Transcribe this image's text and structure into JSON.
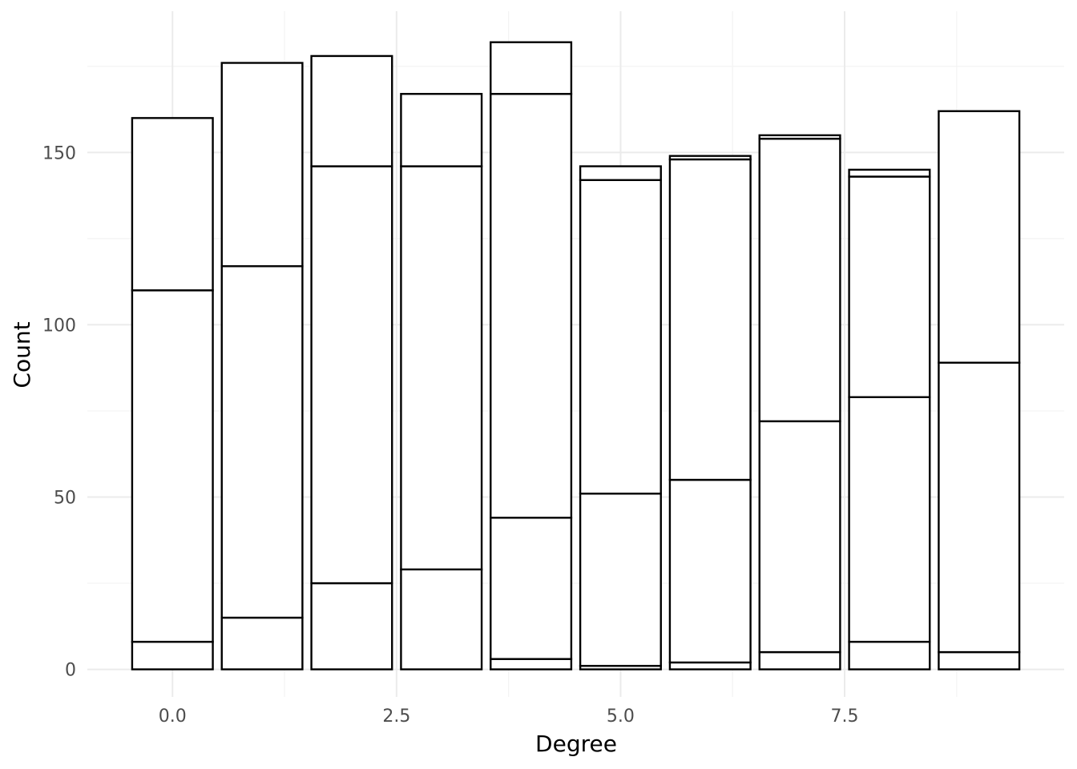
{
  "chart_data": {
    "type": "bar",
    "stacked": true,
    "title": "",
    "xlabel": "Degree",
    "ylabel": "Count",
    "xlim": [
      -0.95,
      9.95
    ],
    "ylim": [
      -8,
      191
    ],
    "x_ticks": [
      0,
      2.5,
      5,
      7.5
    ],
    "x_tick_labels": [
      "0.0",
      "2.5",
      "5.0",
      "7.5"
    ],
    "y_ticks": [
      0,
      50,
      100,
      150
    ],
    "y_tick_labels": [
      "0",
      "50",
      "100",
      "150"
    ],
    "grid": true,
    "legend": "none",
    "bar_width": 0.9,
    "x": [
      0,
      1,
      2,
      3,
      4,
      5,
      6,
      7,
      8,
      9
    ],
    "stack_boundaries": [
      [
        0,
        8,
        110,
        160
      ],
      [
        0,
        15,
        117,
        176
      ],
      [
        0,
        25,
        146,
        178
      ],
      [
        0,
        29,
        146,
        167
      ],
      [
        0,
        3,
        44,
        167,
        182
      ],
      [
        0,
        1,
        51,
        142,
        146
      ],
      [
        0,
        2,
        55,
        148,
        149
      ],
      [
        0,
        5,
        72,
        154,
        155
      ],
      [
        0,
        8,
        79,
        143,
        145
      ],
      [
        0,
        5,
        89,
        162
      ]
    ],
    "totals": [
      160,
      176,
      178,
      167,
      182,
      146,
      149,
      155,
      145,
      162
    ]
  }
}
